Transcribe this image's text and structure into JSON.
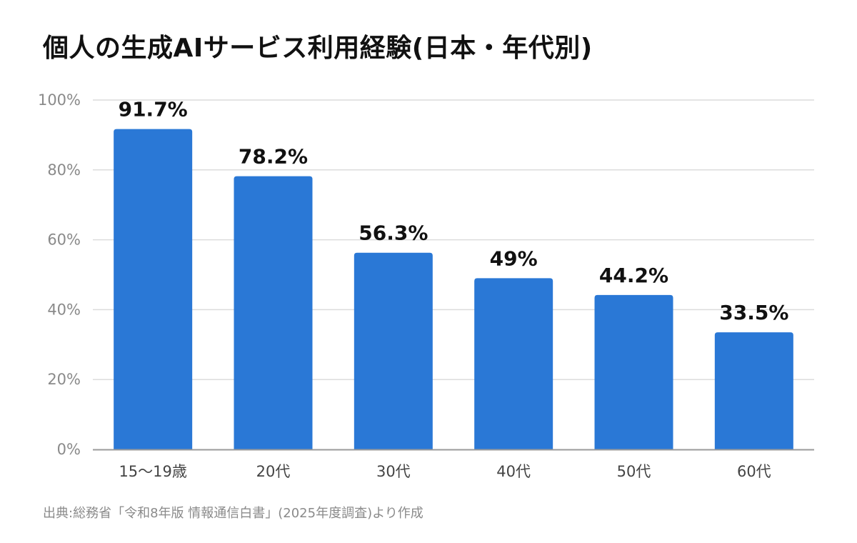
{
  "chart_data": {
    "type": "bar",
    "title": "個人の生成AIサービス利用経験(日本・年代別)",
    "categories": [
      "15〜19歳",
      "20代",
      "30代",
      "40代",
      "50代",
      "60代"
    ],
    "values": [
      91.7,
      78.2,
      56.3,
      49,
      44.2,
      33.5
    ],
    "value_labels": [
      "91.7%",
      "78.2%",
      "56.3%",
      "49%",
      "44.2%",
      "33.5%"
    ],
    "y_ticks": [
      "0%",
      "20%",
      "40%",
      "60%",
      "80%",
      "100%"
    ],
    "ylim": [
      0,
      100
    ],
    "xlabel": "",
    "ylabel": "",
    "grid": true,
    "bar_color": "#2a78d6",
    "source": "出典:総務省「令和8年版 情報通信白書」(2025年度調査)より作成"
  }
}
